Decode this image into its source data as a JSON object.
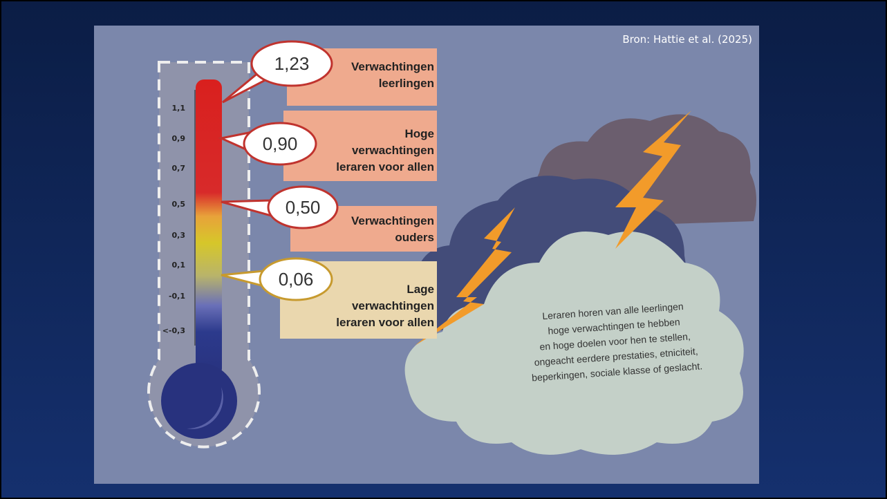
{
  "source": "Bron: Hattie et al. (2025)",
  "scale": {
    "labels": [
      "1,1",
      "0,9",
      "0,7",
      "0,5",
      "0,3",
      "0,1",
      "-0,1",
      "<-0,3"
    ]
  },
  "callouts": [
    {
      "value": "1,23",
      "label": [
        "Verwachtingen",
        "leerlingen"
      ]
    },
    {
      "value": "0,90",
      "label": [
        "Hoge",
        "verwachtingen",
        "leraren voor allen"
      ]
    },
    {
      "value": "0,50",
      "label": [
        "Verwachtingen",
        "ouders"
      ]
    },
    {
      "value": "0,06",
      "label": [
        "Lage",
        "verwachtingen",
        "leraren voor allen"
      ]
    }
  ],
  "cloud_text": [
    "Leraren horen van alle leerlingen",
    "hoge verwachtingen te hebben",
    "en hoge doelen voor hen te stellen,",
    "ongeacht eerdere prestaties, etniciteit,",
    "beperkingen, sociale klasse of geslacht."
  ]
}
